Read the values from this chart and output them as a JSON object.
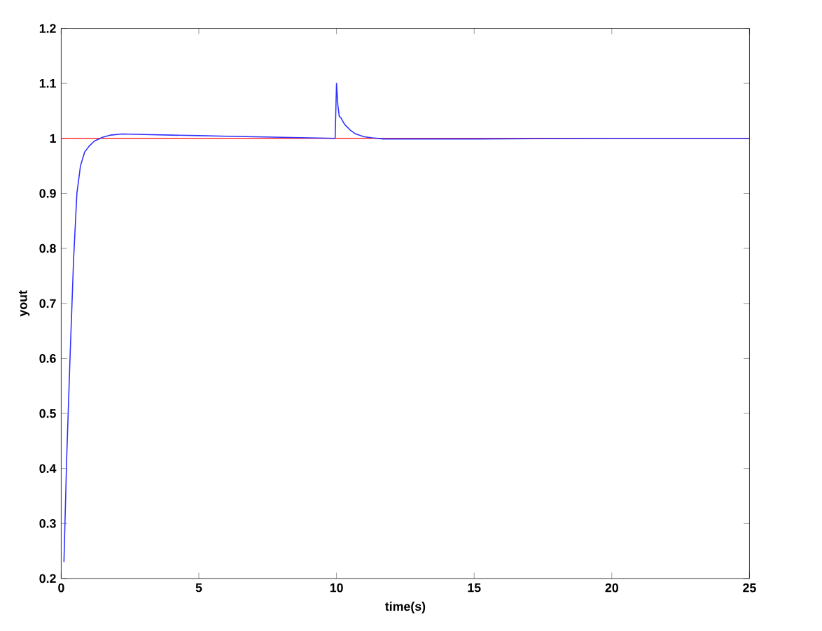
{
  "chart_data": {
    "type": "line",
    "xlabel": "time(s)",
    "ylabel": "yout",
    "xlim": [
      0,
      25
    ],
    "ylim": [
      0.2,
      1.2
    ],
    "xticks": [
      0,
      5,
      10,
      15,
      20,
      25
    ],
    "yticks": [
      0.2,
      0.3,
      0.4,
      0.5,
      0.6,
      0.7,
      0.8,
      0.9,
      1,
      1.1,
      1.2
    ],
    "grid": false,
    "marker": "none",
    "line_style": "solid",
    "ref_lines": [
      {
        "axis": "y",
        "value": 1,
        "color": "#ff3030"
      }
    ],
    "series": [
      {
        "color": "#3030ff",
        "x": [
          0.1,
          0.2,
          0.32,
          0.45,
          0.57,
          0.7,
          0.85,
          1.0,
          1.2,
          1.5,
          1.8,
          2.2,
          3,
          4,
          5,
          6,
          7,
          8,
          9,
          9.95,
          10.0,
          10.05,
          10.1,
          10.15,
          10.3,
          10.5,
          10.7,
          11,
          11.3,
          11.7,
          12,
          15,
          20,
          25
        ],
        "values": [
          0.23,
          0.42,
          0.6,
          0.78,
          0.9,
          0.95,
          0.975,
          0.985,
          0.995,
          1.002,
          1.006,
          1.008,
          1.007,
          1.006,
          1.005,
          1.004,
          1.003,
          1.002,
          1.001,
          1.0,
          1.1,
          1.06,
          1.04,
          1.038,
          1.025,
          1.015,
          1.008,
          1.003,
          1.001,
          0.999,
          0.999,
          0.999,
          1.0,
          1.0
        ]
      }
    ]
  }
}
